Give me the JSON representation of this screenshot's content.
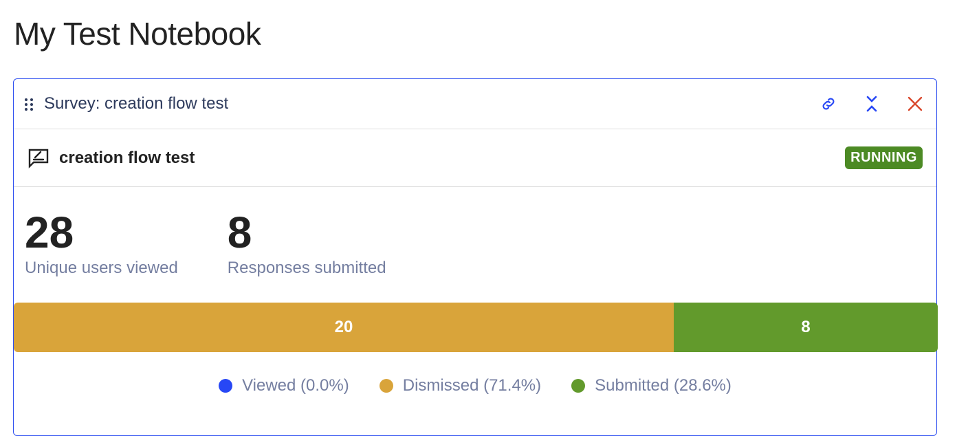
{
  "page_title": "My Test Notebook",
  "card": {
    "header_title": "Survey: creation flow test",
    "survey_name": "creation flow test",
    "status": "RUNNING",
    "stats": [
      {
        "value": "28",
        "label": "Unique users viewed"
      },
      {
        "value": "8",
        "label": "Responses submitted"
      }
    ],
    "bar": [
      {
        "value": 20,
        "label": "20",
        "color": "#d9a43a"
      },
      {
        "value": 8,
        "label": "8",
        "color": "#629a2c"
      }
    ],
    "legend": [
      {
        "label": "Viewed (0.0%)",
        "color": "#2747f5"
      },
      {
        "label": "Dismissed (71.4%)",
        "color": "#d9a43a"
      },
      {
        "label": "Submitted (28.6%)",
        "color": "#629a2c"
      }
    ]
  }
}
